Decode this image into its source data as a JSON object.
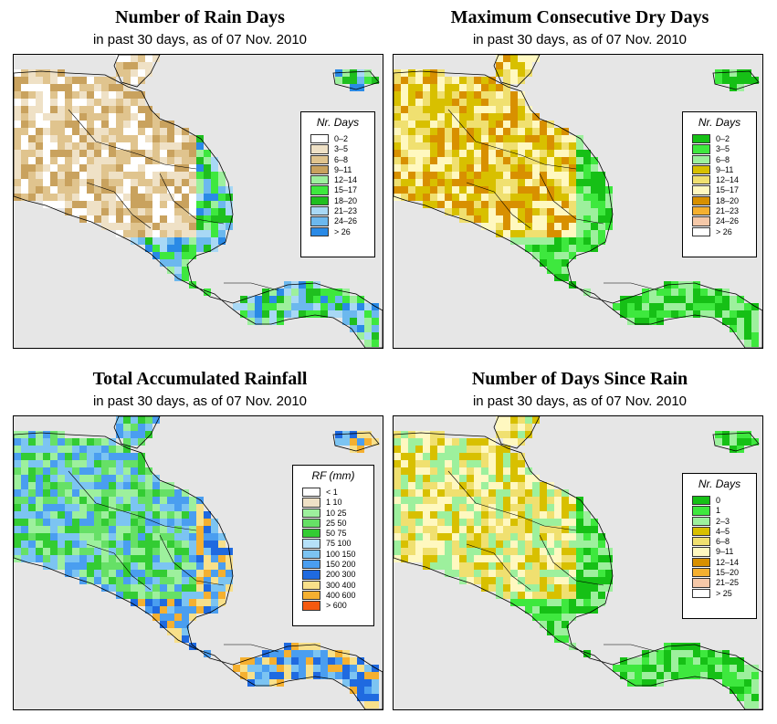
{
  "panels": [
    {
      "title": "Number of Rain Days",
      "subtitle": "in past 30 days, as of  07 Nov. 2010",
      "legend": {
        "title": "Nr. Days",
        "items": [
          {
            "label": "0–2",
            "color": "#ffffff"
          },
          {
            "label": "3–5",
            "color": "#efe1c6"
          },
          {
            "label": "6–8",
            "color": "#e0c48e"
          },
          {
            "label": "9–11",
            "color": "#c9a25e"
          },
          {
            "label": "12–14",
            "color": "#9df09d"
          },
          {
            "label": "15–17",
            "color": "#3ee83e"
          },
          {
            "label": "18–20",
            "color": "#1fbf1f"
          },
          {
            "label": "21–23",
            "color": "#a8d8f5"
          },
          {
            "label": "24–26",
            "color": "#6cb8ee"
          },
          {
            "label": "> 26",
            "color": "#2a8ae6"
          }
        ]
      }
    },
    {
      "title": "Maximum Consecutive Dry Days",
      "subtitle": "in past 30 days, as of  07 Nov. 2010",
      "legend": {
        "title": "Nr. Days",
        "items": [
          {
            "label": "0–2",
            "color": "#16c016"
          },
          {
            "label": "3–5",
            "color": "#3ee83e"
          },
          {
            "label": "6–8",
            "color": "#9df09d"
          },
          {
            "label": "9–11",
            "color": "#d8c000"
          },
          {
            "label": "12–14",
            "color": "#f0e070"
          },
          {
            "label": "15–17",
            "color": "#fff8c0"
          },
          {
            "label": "18–20",
            "color": "#d89000"
          },
          {
            "label": "21–23",
            "color": "#f5b030"
          },
          {
            "label": "24–26",
            "color": "#f5c8a8"
          },
          {
            "label": "> 26",
            "color": "#ffffff"
          }
        ]
      }
    },
    {
      "title": "Total Accumulated Rainfall",
      "subtitle": "in past 30 days, as of  07 Nov. 2010",
      "legend": {
        "title": "RF (mm)",
        "items": [
          {
            "label": "< 1",
            "color": "#ffffff"
          },
          {
            "label": "1  10",
            "color": "#efe1c6"
          },
          {
            "label": "10  25",
            "color": "#9df09d"
          },
          {
            "label": "25  50",
            "color": "#66e066"
          },
          {
            "label": "50  75",
            "color": "#33cc33"
          },
          {
            "label": "75  100",
            "color": "#b5e0f8"
          },
          {
            "label": "100  150",
            "color": "#7cc4f2"
          },
          {
            "label": "150  200",
            "color": "#4a9ef0"
          },
          {
            "label": "200  300",
            "color": "#1f6ae0"
          },
          {
            "label": "300  400",
            "color": "#f8e08a"
          },
          {
            "label": "400  600",
            "color": "#f5b030"
          },
          {
            "label": "> 600",
            "color": "#f55a10"
          }
        ]
      }
    },
    {
      "title": "Number of Days Since Rain",
      "subtitle": "in past 30 days, as of  07 Nov. 2010",
      "legend": {
        "title": "Nr. Days",
        "items": [
          {
            "label": "0",
            "color": "#16c016"
          },
          {
            "label": "1",
            "color": "#3ee83e"
          },
          {
            "label": "2–3",
            "color": "#9df09d"
          },
          {
            "label": "4–5",
            "color": "#d8c000"
          },
          {
            "label": "6–8",
            "color": "#f0e070"
          },
          {
            "label": "9–11",
            "color": "#fff8c0"
          },
          {
            "label": "12–14",
            "color": "#d89000"
          },
          {
            "label": "15–20",
            "color": "#f5b030"
          },
          {
            "label": "21–25",
            "color": "#f5c8a8"
          },
          {
            "label": "> 25",
            "color": "#ffffff"
          }
        ]
      }
    }
  ]
}
